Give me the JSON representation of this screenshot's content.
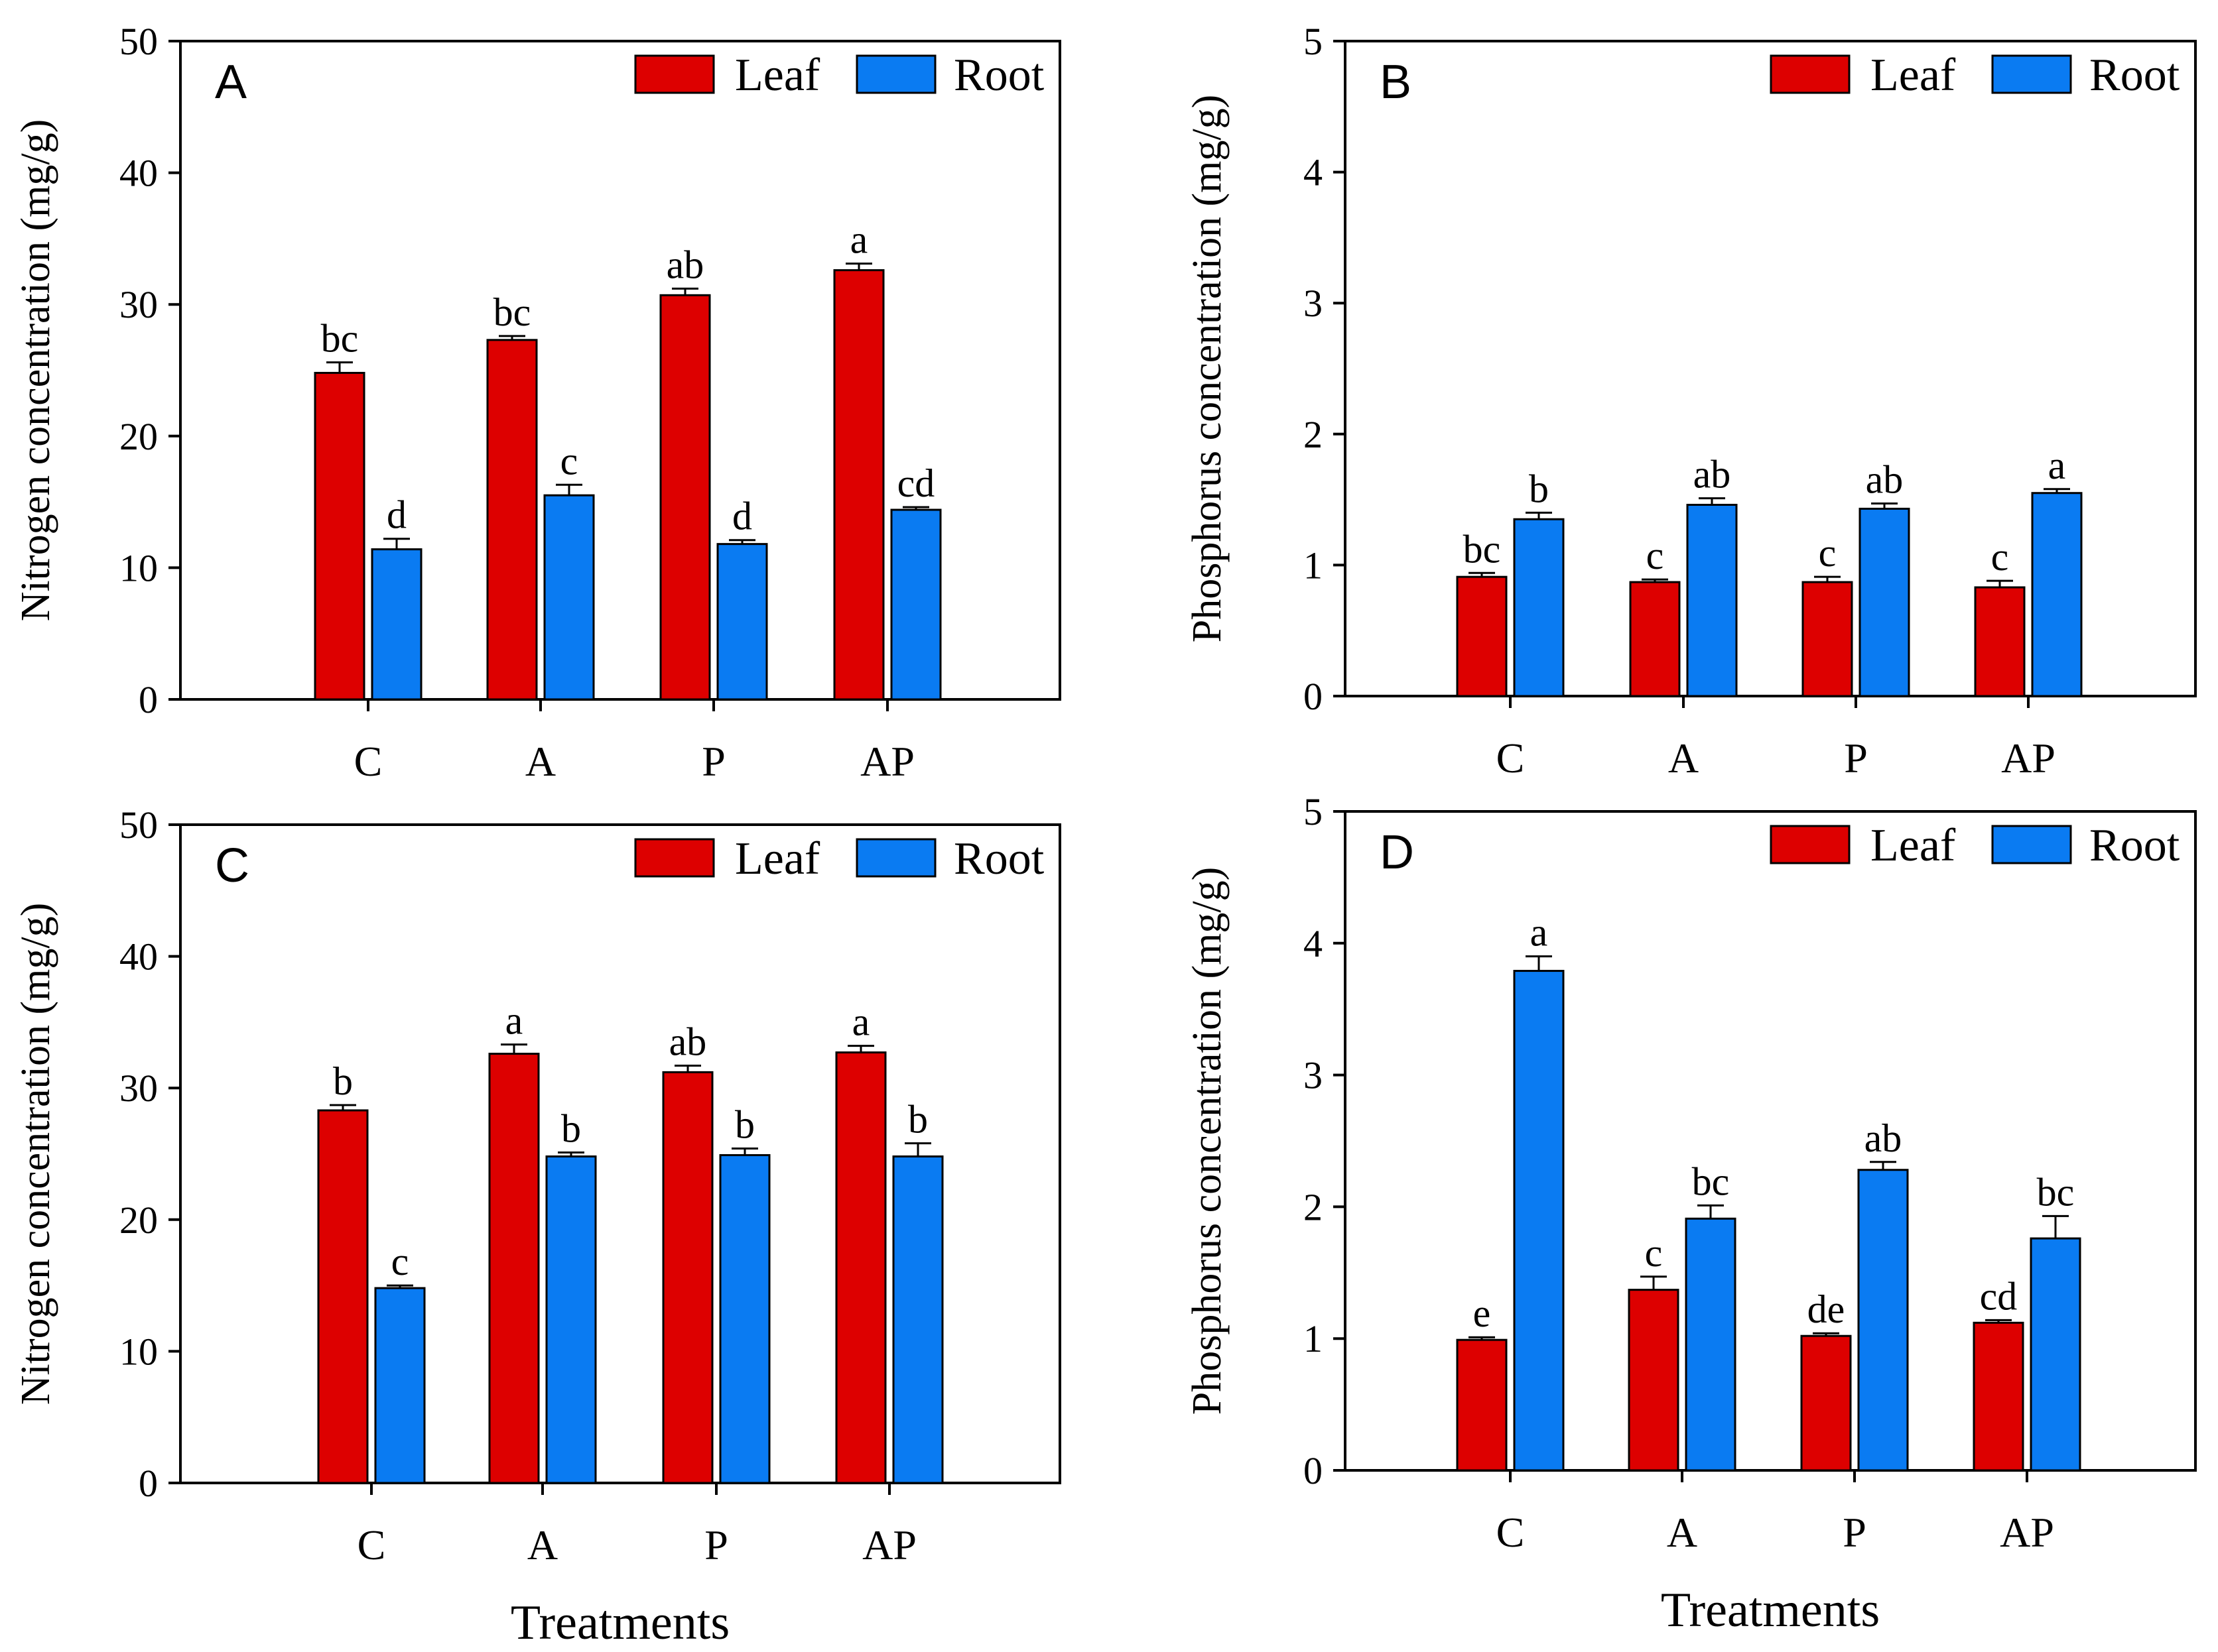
{
  "figure": {
    "x_title": "Treatments",
    "legend": {
      "leaf_label": "Leaf",
      "root_label": "Root"
    },
    "colors": {
      "leaf": "#dd0000",
      "root": "#0a7bf2",
      "stroke": "#000000"
    }
  },
  "chart_data": [
    {
      "panel": "A",
      "type": "bar",
      "ylabel": "Nitrogen concentration (mg/g)",
      "xlabel": "",
      "categories": [
        "C",
        "A",
        "P",
        "AP"
      ],
      "ylim": [
        0,
        50
      ],
      "yticks": [
        0,
        10,
        20,
        30,
        40,
        50
      ],
      "legend_position": "top-right",
      "series": [
        {
          "name": "Leaf",
          "values": [
            24.8,
            27.3,
            30.7,
            32.6
          ],
          "errors": [
            0.8,
            0.3,
            0.5,
            0.5
          ],
          "labels": [
            "bc",
            "bc",
            "ab",
            "a"
          ]
        },
        {
          "name": "Root",
          "values": [
            11.4,
            15.5,
            11.8,
            14.4
          ],
          "errors": [
            0.8,
            0.8,
            0.3,
            0.2
          ],
          "labels": [
            "d",
            "c",
            "d",
            "cd"
          ]
        }
      ]
    },
    {
      "panel": "B",
      "type": "bar",
      "ylabel": "Phosphorus concentration (mg/g)",
      "xlabel": "",
      "categories": [
        "C",
        "A",
        "P",
        "AP"
      ],
      "ylim": [
        0,
        5
      ],
      "yticks": [
        0,
        1,
        2,
        3,
        4,
        5
      ],
      "legend_position": "top-right",
      "series": [
        {
          "name": "Leaf",
          "values": [
            0.91,
            0.87,
            0.87,
            0.83
          ],
          "errors": [
            0.03,
            0.02,
            0.04,
            0.05
          ],
          "labels": [
            "bc",
            "c",
            "c",
            "c"
          ]
        },
        {
          "name": "Root",
          "values": [
            1.35,
            1.46,
            1.43,
            1.55
          ],
          "errors": [
            0.05,
            0.05,
            0.04,
            0.03
          ],
          "labels": [
            "b",
            "ab",
            "ab",
            "a"
          ]
        }
      ]
    },
    {
      "panel": "C",
      "type": "bar",
      "ylabel": "Nitrogen concentration (mg/g)",
      "xlabel": "Treatments",
      "categories": [
        "C",
        "A",
        "P",
        "AP"
      ],
      "ylim": [
        0,
        50
      ],
      "yticks": [
        0,
        10,
        20,
        30,
        40,
        50
      ],
      "legend_position": "top-right",
      "series": [
        {
          "name": "Leaf",
          "values": [
            28.3,
            32.6,
            31.2,
            32.7
          ],
          "errors": [
            0.4,
            0.7,
            0.5,
            0.5
          ],
          "labels": [
            "b",
            "a",
            "ab",
            "a"
          ]
        },
        {
          "name": "Root",
          "values": [
            14.8,
            24.8,
            24.9,
            24.8
          ],
          "errors": [
            0.2,
            0.3,
            0.5,
            1.0
          ],
          "labels": [
            "c",
            "b",
            "b",
            "b"
          ]
        }
      ]
    },
    {
      "panel": "D",
      "type": "bar",
      "ylabel": "Phosphorus concentration (mg/g)",
      "xlabel": "Treatments",
      "categories": [
        "C",
        "A",
        "P",
        "AP"
      ],
      "ylim": [
        0,
        5
      ],
      "yticks": [
        0,
        1,
        2,
        3,
        4,
        5
      ],
      "legend_position": "top-right",
      "series": [
        {
          "name": "Leaf",
          "values": [
            0.99,
            1.37,
            1.02,
            1.12
          ],
          "errors": [
            0.02,
            0.1,
            0.02,
            0.02
          ],
          "labels": [
            "e",
            "c",
            "de",
            "cd"
          ]
        },
        {
          "name": "Root",
          "values": [
            3.79,
            1.91,
            2.28,
            1.76
          ],
          "errors": [
            0.11,
            0.1,
            0.06,
            0.17
          ],
          "labels": [
            "a",
            "bc",
            "ab",
            "bc"
          ]
        }
      ]
    }
  ]
}
